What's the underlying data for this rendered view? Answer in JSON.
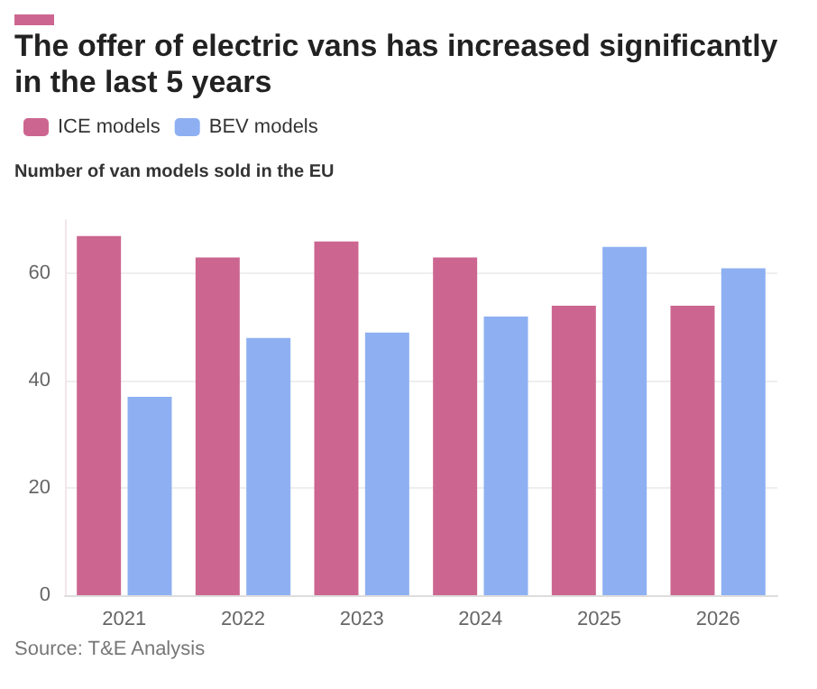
{
  "chart_data": {
    "type": "bar",
    "title": "The offer of electric vans has increased significantly in the last 5 years",
    "subtitle": "Number of van models sold in the EU",
    "categories": [
      "2021",
      "2022",
      "2023",
      "2024",
      "2025",
      "2026"
    ],
    "series": [
      {
        "name": "ICE models",
        "color": "#cc6690",
        "values": [
          67,
          63,
          66,
          63,
          54,
          54
        ]
      },
      {
        "name": "BEV models",
        "color": "#8eb0f2",
        "values": [
          37,
          48,
          49,
          52,
          65,
          61
        ]
      }
    ],
    "ylim": [
      0,
      70
    ],
    "yticks": [
      0,
      20,
      40,
      60
    ],
    "grid": "y",
    "legend": "top left",
    "annotations": [
      "Source: T&E Analysis"
    ]
  }
}
